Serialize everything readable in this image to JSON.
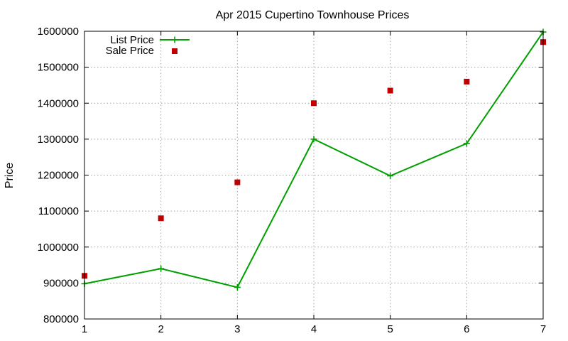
{
  "chart_data": {
    "type": "line",
    "title": "Apr 2015 Cupertino Townhouse Prices",
    "xlabel": "",
    "ylabel": "Price",
    "x": [
      1,
      2,
      3,
      4,
      5,
      6,
      7
    ],
    "xlim": [
      1,
      7
    ],
    "ylim": [
      800000,
      1600000
    ],
    "xticks": [
      "1",
      "2",
      "3",
      "4",
      "5",
      "6",
      "7"
    ],
    "yticks": [
      "800000",
      "900000",
      "1000000",
      "1100000",
      "1200000",
      "1300000",
      "1400000",
      "1500000",
      "1600000"
    ],
    "grid": true,
    "legend_position": "top-left",
    "series": [
      {
        "name": "List Price",
        "style": "line-with-plus-markers",
        "color": "#00a000",
        "values": [
          898000,
          940000,
          888000,
          1300000,
          1198000,
          1288000,
          1598000
        ]
      },
      {
        "name": "Sale Price",
        "style": "square-markers",
        "color": "#c00000",
        "values": [
          920000,
          1080000,
          1180000,
          1400000,
          1435000,
          1460000,
          1570000
        ]
      }
    ]
  }
}
